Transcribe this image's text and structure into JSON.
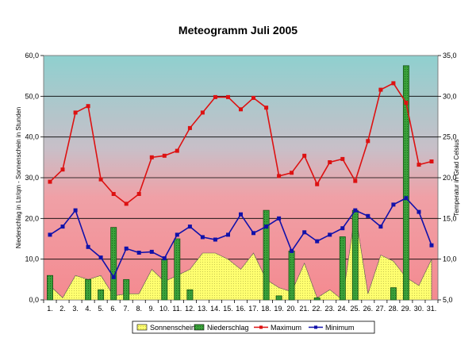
{
  "chart_data": {
    "type": "combo",
    "title": "Meteogramm Juli 2005",
    "ylabel_left": "Niederschlag in Ltr/qm - Sonnenschein in Stunden",
    "ylabel_right": "Temperatur in Grad Celsius",
    "categories": [
      "1.",
      "2.",
      "3.",
      "4.",
      "5.",
      "6.",
      "7.",
      "8.",
      "9.",
      "10.",
      "11.",
      "12.",
      "13.",
      "14.",
      "15.",
      "16.",
      "17.",
      "18.",
      "19.",
      "20.",
      "21.",
      "22.",
      "23.",
      "24.",
      "25.",
      "26.",
      "27.",
      "28.",
      "29.",
      "30.",
      "31."
    ],
    "ylim_left": [
      0,
      60
    ],
    "yticks_left": [
      "0,0",
      "10,0",
      "20,0",
      "30,0",
      "40,0",
      "50,0",
      "60,0"
    ],
    "ylim_right": [
      5,
      35
    ],
    "yticks_right": [
      "5,0",
      "10,0",
      "15,0",
      "20,0",
      "25,0",
      "30,0",
      "35,0"
    ],
    "series": [
      {
        "name": "Sonnenschein",
        "type": "area",
        "axis": "left",
        "color": "#ffff66",
        "values": [
          3.5,
          0.5,
          6.0,
          5.0,
          6.0,
          1.0,
          1.5,
          1.5,
          7.5,
          4.5,
          6.0,
          7.5,
          11.5,
          11.5,
          10.0,
          7.5,
          11.5,
          5.0,
          3.0,
          2.0,
          9.0,
          0.5,
          2.5,
          0.0,
          21.5,
          1.5,
          11.0,
          9.5,
          5.5,
          3.5,
          10.0
        ]
      },
      {
        "name": "Niederschlag",
        "type": "bar",
        "axis": "left",
        "color": "#44aa44",
        "values": [
          6.0,
          0.0,
          0.0,
          5.0,
          2.5,
          17.8,
          5.0,
          0.0,
          0.0,
          10.0,
          15.0,
          2.5,
          0.0,
          0.0,
          0.0,
          0.0,
          0.0,
          22.0,
          1.0,
          12.0,
          0.0,
          0.5,
          0.0,
          15.5,
          22.0,
          0.0,
          0.0,
          3.0,
          57.5,
          0.0,
          0.0
        ]
      },
      {
        "name": "Maximum",
        "type": "line",
        "axis": "right",
        "color": "#dd1111",
        "values": [
          19.5,
          21.0,
          28.0,
          28.8,
          19.8,
          18.0,
          16.8,
          18.0,
          22.5,
          22.7,
          23.3,
          26.1,
          28.0,
          29.9,
          29.9,
          28.4,
          29.8,
          28.6,
          20.2,
          20.6,
          22.7,
          19.2,
          21.9,
          22.3,
          19.6,
          24.5,
          30.8,
          31.6,
          29.2,
          21.6,
          22.0
        ]
      },
      {
        "name": "Minimum",
        "type": "line",
        "axis": "right",
        "color": "#1111aa",
        "values": [
          13.0,
          14.0,
          16.0,
          11.5,
          10.2,
          7.8,
          11.3,
          10.8,
          10.9,
          10.1,
          13.0,
          14.0,
          12.7,
          12.4,
          13.0,
          15.5,
          13.2,
          14.0,
          15.0,
          11.0,
          13.3,
          12.2,
          13.0,
          13.8,
          16.0,
          15.3,
          14.0,
          16.7,
          17.5,
          15.8,
          11.7
        ]
      }
    ],
    "legend_position": "bottom"
  }
}
